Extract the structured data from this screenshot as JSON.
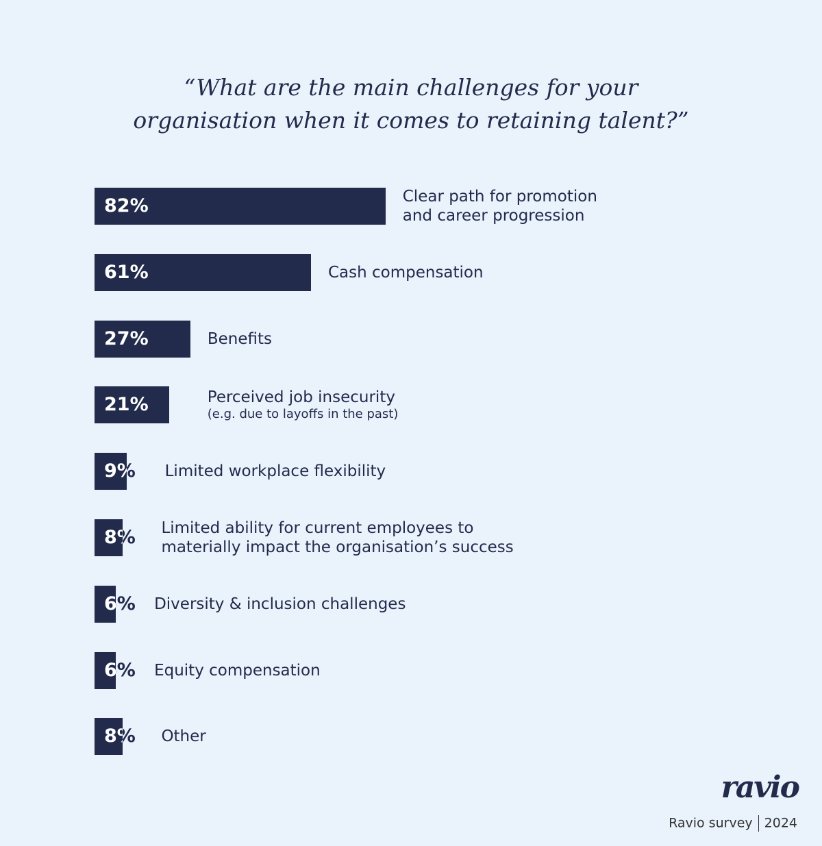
{
  "chart_data": {
    "type": "bar",
    "orientation": "horizontal",
    "title": "“What are the main challenges for your\norganisation when it comes to retaining talent?”",
    "categories": [
      "Clear path for promotion\nand career progression",
      "Cash compensation",
      "Benefits",
      "Perceived job insecurity",
      "Limited workplace flexibility",
      "Limited ability for current employees to\nmaterially impact the organisation’s success",
      "Diversity & inclusion challenges",
      "Equity compensation",
      "Other"
    ],
    "category_notes": [
      null,
      null,
      null,
      "(e.g. due to layoffs in the past)",
      null,
      null,
      null,
      null,
      null
    ],
    "values": [
      82,
      61,
      27,
      21,
      9,
      8,
      6,
      6,
      8
    ],
    "value_labels": [
      "82%",
      "61%",
      "27%",
      "21%",
      "9%",
      "8%",
      "6%",
      "6%",
      "8%"
    ],
    "xlim": [
      0,
      100
    ],
    "color": "#222b4b",
    "logo": "ravio",
    "source": "Ravio survey",
    "year": "2024"
  }
}
